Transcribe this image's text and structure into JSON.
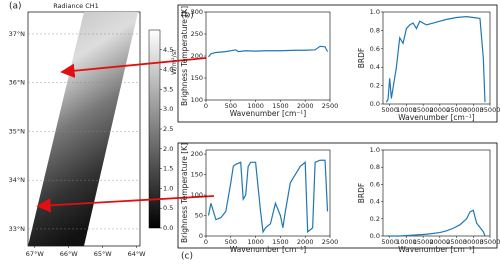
{
  "panel_labels": [
    "(a)",
    "(b)",
    "(c)"
  ],
  "chart_data": [
    {
      "type": "map",
      "title": "Radiance CH1",
      "colorbar_label": "W/m²/sr",
      "xlim": [
        -67.2,
        -63.9
      ],
      "xticks": [
        {
          "value": -67,
          "label": "67°W"
        },
        {
          "value": -66,
          "label": "66°W"
        },
        {
          "value": -65,
          "label": "65°W"
        },
        {
          "value": -64,
          "label": "64°W"
        }
      ],
      "ylim": [
        32.65,
        37.45
      ],
      "yticks": [
        {
          "value": 33,
          "label": "33°N"
        },
        {
          "value": 34,
          "label": "34°N"
        },
        {
          "value": 35,
          "label": "35°N"
        },
        {
          "value": 36,
          "label": "36°N"
        },
        {
          "value": 37,
          "label": "37°N"
        }
      ],
      "clim": [
        0,
        5
      ],
      "cticks": [
        {
          "value": 0,
          "label": "0.0"
        },
        0.5,
        {
          "value": 1,
          "label": "1.0"
        },
        1.5,
        {
          "value": 2,
          "label": "2.0"
        },
        2.5,
        {
          "value": 3,
          "label": "3.0"
        },
        3.5,
        {
          "value": 4,
          "label": "4.0"
        },
        4.5
      ]
    },
    {
      "type": "line",
      "ylabel": "Brighness Temperature [K]",
      "xlabel": "Wavenumber [cm⁻¹]",
      "xlim": [
        0,
        2500
      ],
      "xticks": [
        0,
        500,
        1000,
        1500,
        2000,
        2500
      ],
      "ylim": [
        100,
        300
      ],
      "yticks": [
        100,
        150,
        200,
        250,
        300
      ],
      "series": [
        {
          "color": "#1f77b4",
          "x": [
            50,
            100,
            200,
            400,
            600,
            650,
            800,
            1000,
            1200,
            1500,
            1800,
            2000,
            2200,
            2300,
            2400,
            2450
          ],
          "values": [
            198,
            205,
            208,
            210,
            214,
            210,
            212,
            211,
            212,
            212,
            213,
            213,
            214,
            222,
            221,
            210
          ]
        }
      ]
    },
    {
      "type": "line",
      "ylabel": "BRDF",
      "xlabel": "Wavenumber [cm⁻¹]",
      "xlim": [
        3000,
        35000
      ],
      "xticks": [
        5000,
        10000,
        15000,
        20000,
        25000,
        30000,
        35000
      ],
      "ylim": [
        0,
        1
      ],
      "yticks": [
        {
          "value": 0,
          "label": "0.0"
        },
        0.2,
        0.4,
        0.6,
        0.8,
        {
          "value": 1,
          "label": "1.0"
        }
      ],
      "series": [
        {
          "color": "#1f77b4",
          "x": [
            4000,
            4500,
            5000,
            5500,
            7000,
            8000,
            9000,
            10000,
            11000,
            12000,
            13000,
            14000,
            16000,
            18000,
            20000,
            22000,
            25000,
            28000,
            30000,
            32000,
            33000,
            33500
          ],
          "values": [
            0.02,
            0.05,
            0.28,
            0.06,
            0.4,
            0.72,
            0.66,
            0.82,
            0.86,
            0.88,
            0.82,
            0.9,
            0.86,
            0.88,
            0.9,
            0.92,
            0.94,
            0.95,
            0.94,
            0.93,
            0.5,
            0.02
          ]
        }
      ]
    },
    {
      "type": "line",
      "ylabel": "Brighness Temperature [K]",
      "xlabel": "Wavenumber [cm⁻¹]",
      "xlim": [
        0,
        2500
      ],
      "xticks": [
        0,
        500,
        1000,
        1500,
        2000,
        2500
      ],
      "ylim": [
        0,
        210
      ],
      "yticks": [
        0,
        50,
        100,
        150,
        200
      ],
      "series": [
        {
          "color": "#1f77b4",
          "x": [
            50,
            100,
            150,
            200,
            300,
            400,
            500,
            550,
            600,
            700,
            750,
            800,
            850,
            900,
            1000,
            1100,
            1150,
            1200,
            1300,
            1400,
            1500,
            1550,
            1600,
            1700,
            1800,
            1900,
            2000,
            2050,
            2150,
            2200,
            2300,
            2400,
            2450
          ],
          "values": [
            50,
            80,
            60,
            40,
            45,
            60,
            130,
            170,
            175,
            180,
            90,
            100,
            170,
            180,
            180,
            60,
            10,
            20,
            30,
            80,
            50,
            20,
            60,
            130,
            150,
            170,
            180,
            10,
            20,
            180,
            185,
            185,
            60
          ]
        }
      ]
    },
    {
      "type": "line",
      "ylabel": "BRDF",
      "xlabel": "Wavenumber [cm⁻¹]",
      "xlim": [
        3000,
        35000
      ],
      "xticks": [
        5000,
        10000,
        15000,
        20000,
        25000,
        30000,
        35000
      ],
      "ylim": [
        0,
        1
      ],
      "yticks": [
        {
          "value": 0,
          "label": "0.0"
        },
        0.2,
        0.4,
        0.6,
        0.8,
        {
          "value": 1,
          "label": "1.0"
        }
      ],
      "series": [
        {
          "color": "#1f77b4",
          "x": [
            4000,
            8000,
            12000,
            16000,
            20000,
            22000,
            24000,
            26000,
            28000,
            29000,
            30000,
            31000,
            32000,
            33000,
            33500
          ],
          "values": [
            0.0,
            0.0,
            0.01,
            0.02,
            0.04,
            0.06,
            0.09,
            0.13,
            0.2,
            0.28,
            0.3,
            0.15,
            0.1,
            0.05,
            0.0
          ]
        }
      ]
    }
  ]
}
